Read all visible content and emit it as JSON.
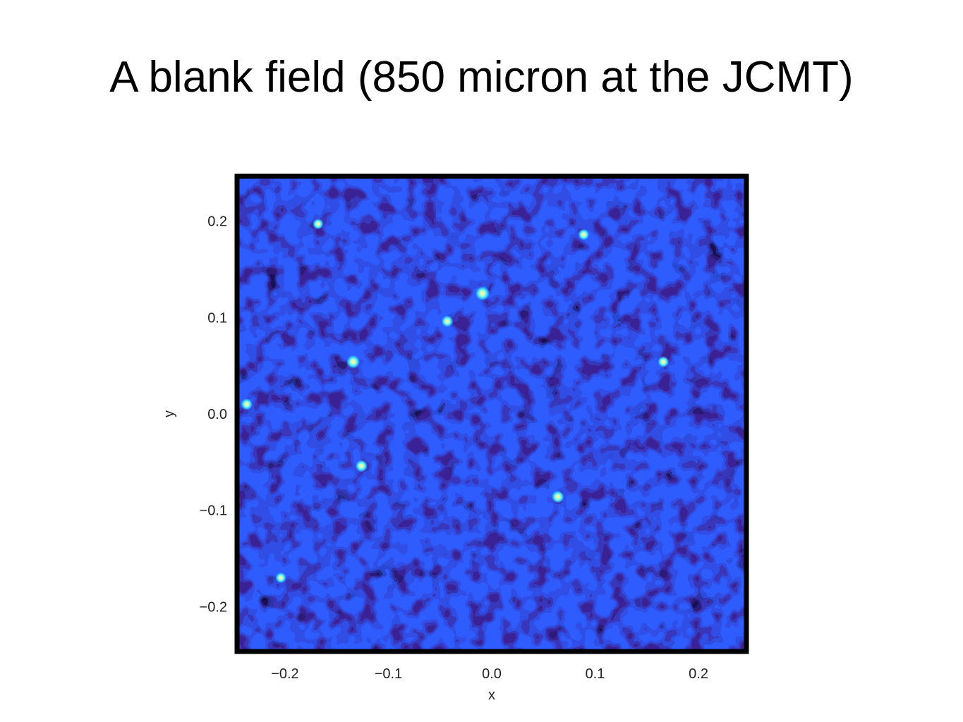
{
  "slide": {
    "title": "A blank field (850 micron at the JCMT)"
  },
  "chart_data": {
    "type": "heatmap",
    "title": "",
    "xlabel": "x",
    "ylabel": "y",
    "xlim": [
      -0.245,
      0.245
    ],
    "ylim": [
      -0.245,
      0.245
    ],
    "x_ticks": [
      -0.2,
      -0.1,
      0.0,
      0.1,
      0.2
    ],
    "y_ticks": [
      -0.2,
      -0.1,
      0.0,
      0.1,
      0.2
    ],
    "x_tick_labels": [
      "−0.2",
      "−0.1",
      "0.0",
      "0.1",
      "0.2"
    ],
    "y_tick_labels": [
      "−0.2",
      "−0.1",
      "0.0",
      "0.1",
      "0.2"
    ],
    "grid": false,
    "colormap": [
      "#0a0318",
      "#2a1a6e",
      "#3a2ad8",
      "#2a6cff",
      "#2ad8ff",
      "#b8ffd8",
      "#ffff60"
    ],
    "frame_color": "#000000",
    "field_description_values": {
      "brightest_sources": [
        {
          "x": -0.009,
          "y": 0.125,
          "level": 1.0
        },
        {
          "x": -0.134,
          "y": 0.054,
          "level": 0.9
        },
        {
          "x": 0.064,
          "y": -0.086,
          "level": 0.8
        },
        {
          "x": -0.126,
          "y": -0.054,
          "level": 0.75
        },
        {
          "x": -0.043,
          "y": 0.096,
          "level": 0.7
        },
        {
          "x": -0.237,
          "y": 0.01,
          "level": 0.7
        },
        {
          "x": 0.166,
          "y": 0.054,
          "level": 0.65
        },
        {
          "x": 0.089,
          "y": 0.186,
          "level": 0.65
        },
        {
          "x": -0.168,
          "y": 0.197,
          "level": 0.6
        },
        {
          "x": -0.204,
          "y": -0.17,
          "level": 0.6
        }
      ]
    }
  }
}
